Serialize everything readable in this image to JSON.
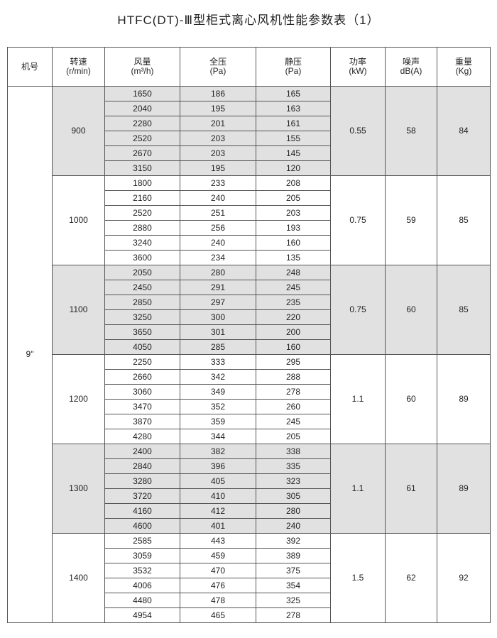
{
  "title": "HTFC(DT)-Ⅲ型柜式离心风机性能参数表（1）",
  "headers": [
    {
      "name": "机号",
      "unit": ""
    },
    {
      "name": "转速",
      "unit": "(r/min)"
    },
    {
      "name": "风量",
      "unit": "(m³/h)"
    },
    {
      "name": "全压",
      "unit": "(Pa)"
    },
    {
      "name": "静压",
      "unit": "(Pa)"
    },
    {
      "name": "功率",
      "unit": "(kW)"
    },
    {
      "name": "噪声",
      "unit": "dB(A)"
    },
    {
      "name": "重量",
      "unit": "(Kg)"
    }
  ],
  "model": "9\"",
  "groups": [
    {
      "speed": "900",
      "power": "0.55",
      "noise": "58",
      "weight": "84",
      "shaded": true,
      "rows": [
        [
          "1650",
          "186",
          "165"
        ],
        [
          "2040",
          "195",
          "163"
        ],
        [
          "2280",
          "201",
          "161"
        ],
        [
          "2520",
          "203",
          "155"
        ],
        [
          "2670",
          "203",
          "145"
        ],
        [
          "3150",
          "195",
          "120"
        ]
      ]
    },
    {
      "speed": "1000",
      "power": "0.75",
      "noise": "59",
      "weight": "85",
      "shaded": false,
      "rows": [
        [
          "1800",
          "233",
          "208"
        ],
        [
          "2160",
          "240",
          "205"
        ],
        [
          "2520",
          "251",
          "203"
        ],
        [
          "2880",
          "256",
          "193"
        ],
        [
          "3240",
          "240",
          "160"
        ],
        [
          "3600",
          "234",
          "135"
        ]
      ]
    },
    {
      "speed": "1100",
      "power": "0.75",
      "noise": "60",
      "weight": "85",
      "shaded": true,
      "rows": [
        [
          "2050",
          "280",
          "248"
        ],
        [
          "2450",
          "291",
          "245"
        ],
        [
          "2850",
          "297",
          "235"
        ],
        [
          "3250",
          "300",
          "220"
        ],
        [
          "3650",
          "301",
          "200"
        ],
        [
          "4050",
          "285",
          "160"
        ]
      ]
    },
    {
      "speed": "1200",
      "power": "1.1",
      "noise": "60",
      "weight": "89",
      "shaded": false,
      "rows": [
        [
          "2250",
          "333",
          "295"
        ],
        [
          "2660",
          "342",
          "288"
        ],
        [
          "3060",
          "349",
          "278"
        ],
        [
          "3470",
          "352",
          "260"
        ],
        [
          "3870",
          "359",
          "245"
        ],
        [
          "4280",
          "344",
          "205"
        ]
      ]
    },
    {
      "speed": "1300",
      "power": "1.1",
      "noise": "61",
      "weight": "89",
      "shaded": true,
      "rows": [
        [
          "2400",
          "382",
          "338"
        ],
        [
          "2840",
          "396",
          "335"
        ],
        [
          "3280",
          "405",
          "323"
        ],
        [
          "3720",
          "410",
          "305"
        ],
        [
          "4160",
          "412",
          "280"
        ],
        [
          "4600",
          "401",
          "240"
        ]
      ]
    },
    {
      "speed": "1400",
      "power": "1.5",
      "noise": "62",
      "weight": "92",
      "shaded": false,
      "rows": [
        [
          "2585",
          "443",
          "392"
        ],
        [
          "3059",
          "459",
          "389"
        ],
        [
          "3532",
          "470",
          "375"
        ],
        [
          "4006",
          "476",
          "354"
        ],
        [
          "4480",
          "478",
          "325"
        ],
        [
          "4954",
          "465",
          "278"
        ]
      ]
    }
  ]
}
